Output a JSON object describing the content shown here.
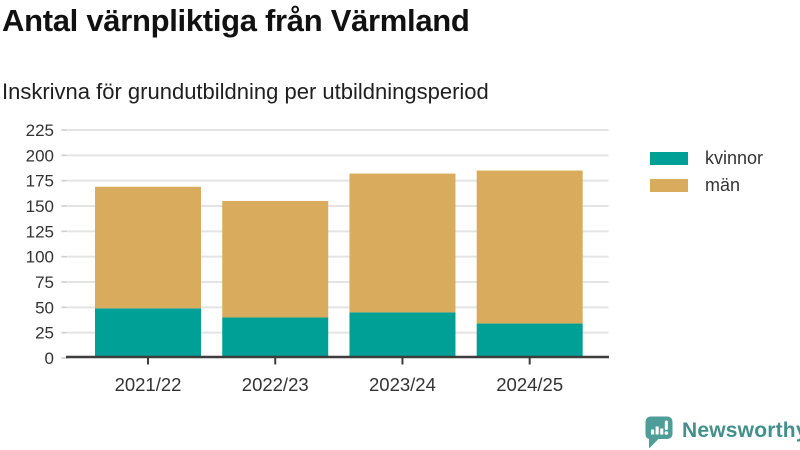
{
  "chart_data": {
    "type": "bar",
    "stacked": true,
    "title": "Antal värnpliktiga från Värmland",
    "subtitle": "Inskrivna för grundutbildning per utbildningsperiod",
    "categories": [
      "2021/22",
      "2022/23",
      "2023/24",
      "2024/25"
    ],
    "series": [
      {
        "name": "kvinnor",
        "color": "#00A096",
        "values": [
          49,
          40,
          45,
          34
        ]
      },
      {
        "name": "män",
        "color": "#D8AC5C",
        "values": [
          120,
          115,
          137,
          151
        ]
      }
    ],
    "stack_totals": [
      169,
      155,
      182,
      185
    ],
    "ylim": [
      0,
      225
    ],
    "ytick_step": 25,
    "xlabel": "",
    "ylabel": "",
    "grid": true,
    "legend_position": "right"
  },
  "footer": {
    "brand": "Newsworthy"
  },
  "colors": {
    "kvinnor": "#00A096",
    "man": "#D8AC5C",
    "axis": "#3d3d3d",
    "gridline": "#e4e4e4",
    "y_stub": "#cfcfcf",
    "tick_label": "#333333",
    "brand_text": "#41908C",
    "brand_icon": "#4F9D99"
  }
}
